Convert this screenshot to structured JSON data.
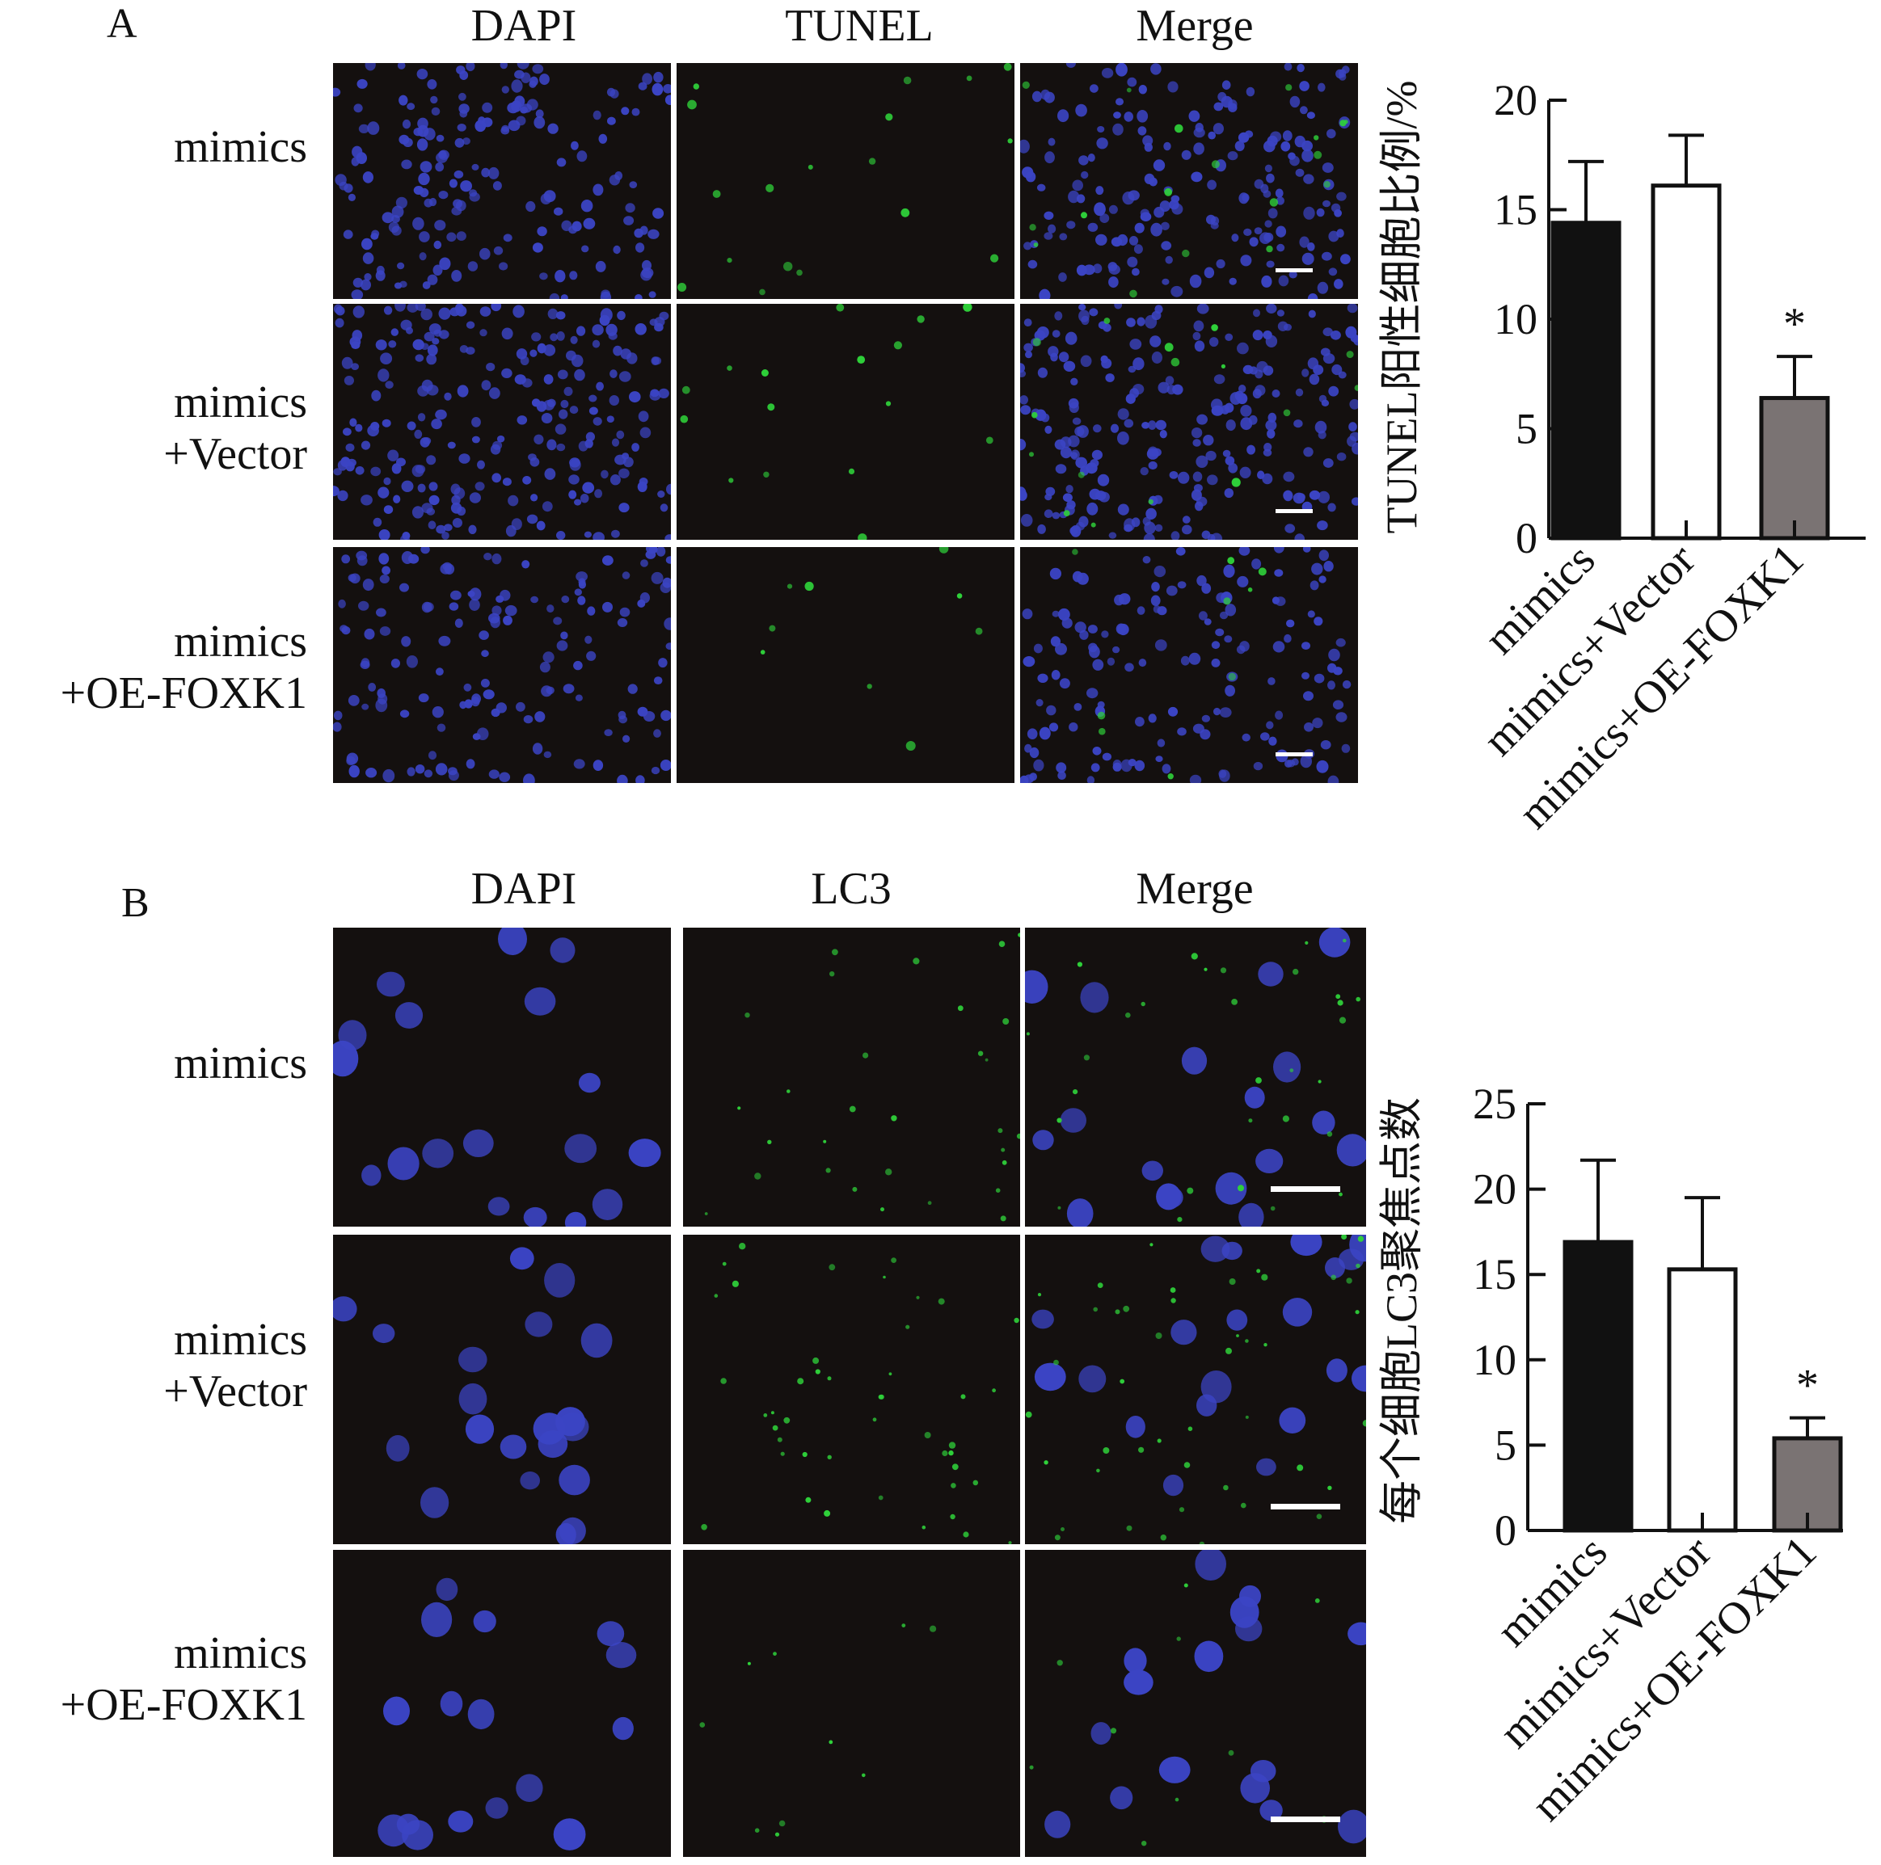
{
  "panel_a": {
    "letter": "A",
    "columns": [
      "DAPI",
      "TUNEL",
      "Merge"
    ],
    "rows": [
      {
        "line1": "mimics",
        "line2": ""
      },
      {
        "line1": "mimics",
        "line2": "+Vector"
      },
      {
        "line1": "mimics",
        "line2": "+OE-FOXK1"
      }
    ]
  },
  "panel_b": {
    "letter": "B",
    "columns": [
      "DAPI",
      "LC3",
      "Merge"
    ],
    "rows": [
      {
        "line1": "mimics",
        "line2": ""
      },
      {
        "line1": "mimics",
        "line2": "+Vector"
      },
      {
        "line1": "mimics",
        "line2": "+OE-FOXK1"
      }
    ]
  },
  "colors": {
    "tile_bg": "#14100f",
    "nucleus": "#3b44c4",
    "signal": "#2fd13a",
    "bar_mimics": "#111111",
    "bar_vector": "#ffffff",
    "bar_oe": "#7a7373"
  },
  "chart_data": [
    {
      "type": "bar",
      "categories": [
        "mimics",
        "mimics+Vector",
        "mimics+OE-FOXK1"
      ],
      "values": [
        14.4,
        16.1,
        6.4
      ],
      "errors": [
        2.8,
        2.3,
        1.9
      ],
      "significance": [
        "",
        "",
        "*"
      ],
      "ylabel": "TUNEL阳性细胞比例/%",
      "ylim": [
        0,
        20
      ],
      "yticks": [
        0,
        5,
        10,
        15,
        20
      ],
      "grid": false
    },
    {
      "type": "bar",
      "categories": [
        "mimics",
        "mimics+Vector",
        "mimics+OE-FOXK1"
      ],
      "values": [
        16.9,
        15.3,
        5.4
      ],
      "errors": [
        4.8,
        4.2,
        1.2
      ],
      "significance": [
        "",
        "",
        "*"
      ],
      "ylabel": "每个细胞LC3聚焦点数",
      "ylim": [
        0,
        25
      ],
      "yticks": [
        0,
        5,
        10,
        15,
        20,
        25
      ],
      "grid": false
    }
  ]
}
